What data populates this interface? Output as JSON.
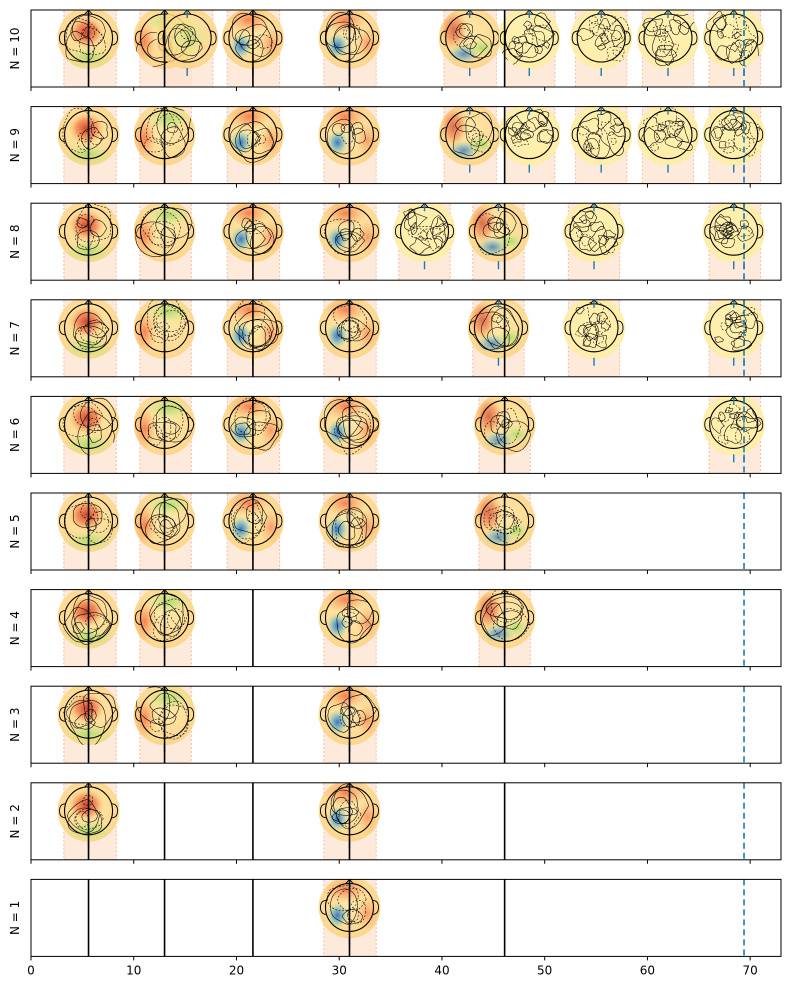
{
  "chart_data": {
    "type": "topomap-timeline",
    "xlim": [
      0,
      73
    ],
    "x_ticks": [
      0,
      10,
      20,
      30,
      40,
      50,
      60,
      70
    ],
    "x_tick_labels": [
      "0",
      "10",
      "20",
      "30",
      "40",
      "50",
      "60",
      "70"
    ],
    "reference_lines_solid": [
      5.6,
      13.0,
      21.6,
      31.0,
      46.1
    ],
    "reference_line_dashed": 69.4,
    "colors": {
      "solid_line": "#000000",
      "dashed_line": "#1f77b4",
      "window_fill": "#fde3cf",
      "window_edge": "#f4a582",
      "marker": "#1f77b4"
    },
    "rows": [
      {
        "n": 10,
        "label": "N = 10",
        "topomaps": [
          {
            "center": 5.6,
            "window": [
              3.2,
              8.3
            ],
            "pattern": "frontal",
            "markers": [
              5.6
            ]
          },
          {
            "center": 13.0,
            "window": [
              10.6,
              15.6
            ],
            "pattern": "left",
            "markers": [
              13.0
            ]
          },
          {
            "center": 15.2,
            "window": [
              13.0,
              17.7
            ],
            "pattern": "central",
            "markers": [
              15.2
            ]
          },
          {
            "center": 21.6,
            "window": [
              19.1,
              24.2
            ],
            "pattern": "occipital",
            "markers": [
              21.6
            ]
          },
          {
            "center": 31.0,
            "window": [
              28.5,
              33.6
            ],
            "pattern": "occipital",
            "markers": [
              31.0
            ]
          },
          {
            "center": 42.7,
            "window": [
              40.2,
              45.3
            ],
            "pattern": "mixed",
            "markers": [
              42.7
            ]
          },
          {
            "center": 48.5,
            "window": [
              46.1,
              51.0
            ],
            "pattern": "noisy",
            "markers": [
              48.5
            ]
          },
          {
            "center": 55.5,
            "window": [
              53.0,
              58.0
            ],
            "pattern": "noisy",
            "markers": [
              55.5
            ]
          },
          {
            "center": 62.0,
            "window": [
              59.5,
              64.5
            ],
            "pattern": "noisy",
            "markers": [
              62.0
            ]
          },
          {
            "center": 68.4,
            "window": [
              66.0,
              71.0
            ],
            "pattern": "noisy",
            "markers": [
              68.4,
              69.4
            ]
          }
        ]
      },
      {
        "n": 9,
        "label": "N = 9",
        "topomaps": [
          {
            "center": 5.6,
            "window": [
              3.2,
              8.3
            ],
            "pattern": "frontal",
            "markers": [
              5.6
            ]
          },
          {
            "center": 13.0,
            "window": [
              10.6,
              15.6
            ],
            "pattern": "left",
            "markers": [
              13.0
            ]
          },
          {
            "center": 21.6,
            "window": [
              19.1,
              24.2
            ],
            "pattern": "occipital",
            "markers": [
              21.6
            ]
          },
          {
            "center": 31.0,
            "window": [
              28.5,
              33.6
            ],
            "pattern": "occipital",
            "markers": [
              31.0
            ]
          },
          {
            "center": 42.7,
            "window": [
              40.2,
              45.3
            ],
            "pattern": "mixed",
            "markers": [
              42.7
            ]
          },
          {
            "center": 48.5,
            "window": [
              46.1,
              51.0
            ],
            "pattern": "noisy",
            "markers": [
              48.5
            ]
          },
          {
            "center": 55.5,
            "window": [
              53.0,
              58.0
            ],
            "pattern": "noisy",
            "markers": [
              55.5
            ]
          },
          {
            "center": 62.0,
            "window": [
              59.5,
              64.5
            ],
            "pattern": "noisy",
            "markers": [
              62.0
            ]
          },
          {
            "center": 68.4,
            "window": [
              66.0,
              71.0
            ],
            "pattern": "noisy",
            "markers": [
              68.4,
              69.4
            ]
          }
        ]
      },
      {
        "n": 8,
        "label": "N = 8",
        "topomaps": [
          {
            "center": 5.6,
            "window": [
              3.2,
              8.3
            ],
            "pattern": "frontal",
            "markers": [
              5.6
            ]
          },
          {
            "center": 13.0,
            "window": [
              10.6,
              15.6
            ],
            "pattern": "left",
            "markers": [
              13.0
            ]
          },
          {
            "center": 21.6,
            "window": [
              19.1,
              24.2
            ],
            "pattern": "occipital",
            "markers": [
              21.6
            ]
          },
          {
            "center": 31.0,
            "window": [
              28.5,
              33.6
            ],
            "pattern": "occipital",
            "markers": [
              31.0
            ]
          },
          {
            "center": 38.3,
            "window": [
              35.8,
              40.8
            ],
            "pattern": "noisy",
            "markers": [
              38.3
            ]
          },
          {
            "center": 45.5,
            "window": [
              43.0,
              48.0
            ],
            "pattern": "mixed",
            "markers": [
              45.5
            ]
          },
          {
            "center": 54.8,
            "window": [
              52.3,
              57.3
            ],
            "pattern": "noisy",
            "markers": [
              54.8
            ]
          },
          {
            "center": 68.4,
            "window": [
              66.0,
              71.0
            ],
            "pattern": "noisy",
            "markers": [
              68.4,
              69.4
            ]
          }
        ]
      },
      {
        "n": 7,
        "label": "N = 7",
        "topomaps": [
          {
            "center": 5.6,
            "window": [
              3.2,
              8.3
            ],
            "pattern": "frontal",
            "markers": [
              5.6
            ]
          },
          {
            "center": 13.0,
            "window": [
              10.6,
              15.6
            ],
            "pattern": "left",
            "markers": [
              13.0
            ]
          },
          {
            "center": 21.6,
            "window": [
              19.1,
              24.2
            ],
            "pattern": "occipital",
            "markers": [
              21.6
            ]
          },
          {
            "center": 31.0,
            "window": [
              28.5,
              33.6
            ],
            "pattern": "occipital",
            "markers": [
              31.0
            ]
          },
          {
            "center": 45.5,
            "window": [
              43.0,
              48.0
            ],
            "pattern": "mixed",
            "markers": [
              45.5
            ]
          },
          {
            "center": 54.8,
            "window": [
              52.3,
              57.3
            ],
            "pattern": "noisy",
            "markers": [
              54.8
            ]
          },
          {
            "center": 68.4,
            "window": [
              66.0,
              71.0
            ],
            "pattern": "noisy",
            "markers": [
              68.4,
              69.4
            ]
          }
        ]
      },
      {
        "n": 6,
        "label": "N = 6",
        "topomaps": [
          {
            "center": 5.6,
            "window": [
              3.2,
              8.3
            ],
            "pattern": "frontal",
            "markers": [
              5.6
            ]
          },
          {
            "center": 13.0,
            "window": [
              10.6,
              15.6
            ],
            "pattern": "left",
            "markers": [
              13.0
            ]
          },
          {
            "center": 21.6,
            "window": [
              19.1,
              24.2
            ],
            "pattern": "occipital",
            "markers": [
              21.6
            ]
          },
          {
            "center": 31.0,
            "window": [
              28.5,
              33.6
            ],
            "pattern": "occipital",
            "markers": [
              31.0
            ]
          },
          {
            "center": 46.1,
            "window": [
              43.6,
              48.6
            ],
            "pattern": "mixed",
            "markers": [
              46.1
            ]
          },
          {
            "center": 68.4,
            "window": [
              66.0,
              71.0
            ],
            "pattern": "noisy",
            "markers": [
              68.4,
              69.4
            ]
          }
        ]
      },
      {
        "n": 5,
        "label": "N = 5",
        "topomaps": [
          {
            "center": 5.6,
            "window": [
              3.2,
              8.3
            ],
            "pattern": "frontal",
            "markers": [
              5.6
            ]
          },
          {
            "center": 13.0,
            "window": [
              10.6,
              15.6
            ],
            "pattern": "left",
            "markers": [
              13.0
            ]
          },
          {
            "center": 21.6,
            "window": [
              19.1,
              24.2
            ],
            "pattern": "occipital",
            "markers": [
              21.6
            ]
          },
          {
            "center": 31.0,
            "window": [
              28.5,
              33.6
            ],
            "pattern": "occipital",
            "markers": [
              31.0
            ]
          },
          {
            "center": 46.1,
            "window": [
              43.6,
              48.6
            ],
            "pattern": "mixed",
            "markers": [
              46.1
            ]
          }
        ]
      },
      {
        "n": 4,
        "label": "N = 4",
        "topomaps": [
          {
            "center": 5.6,
            "window": [
              3.2,
              8.3
            ],
            "pattern": "frontal",
            "markers": [
              5.6
            ]
          },
          {
            "center": 13.0,
            "window": [
              10.6,
              15.6
            ],
            "pattern": "left",
            "markers": [
              13.0
            ]
          },
          {
            "center": 31.0,
            "window": [
              28.5,
              33.6
            ],
            "pattern": "occipital",
            "markers": [
              31.0
            ]
          },
          {
            "center": 46.1,
            "window": [
              43.6,
              48.6
            ],
            "pattern": "mixed",
            "markers": [
              46.1
            ]
          }
        ]
      },
      {
        "n": 3,
        "label": "N = 3",
        "topomaps": [
          {
            "center": 5.6,
            "window": [
              3.2,
              8.3
            ],
            "pattern": "frontal",
            "markers": [
              5.6
            ]
          },
          {
            "center": 13.0,
            "window": [
              10.6,
              15.6
            ],
            "pattern": "left",
            "markers": [
              13.0
            ]
          },
          {
            "center": 31.0,
            "window": [
              28.5,
              33.6
            ],
            "pattern": "occipital",
            "markers": [
              31.0
            ]
          }
        ]
      },
      {
        "n": 2,
        "label": "N = 2",
        "topomaps": [
          {
            "center": 5.6,
            "window": [
              3.2,
              8.3
            ],
            "pattern": "frontal",
            "markers": [
              5.6
            ]
          },
          {
            "center": 31.0,
            "window": [
              28.5,
              33.6
            ],
            "pattern": "occipital",
            "markers": [
              31.0
            ]
          }
        ]
      },
      {
        "n": 1,
        "label": "N = 1",
        "topomaps": [
          {
            "center": 31.0,
            "window": [
              28.5,
              33.6
            ],
            "pattern": "occipital",
            "markers": [
              31.0
            ]
          }
        ]
      }
    ]
  }
}
